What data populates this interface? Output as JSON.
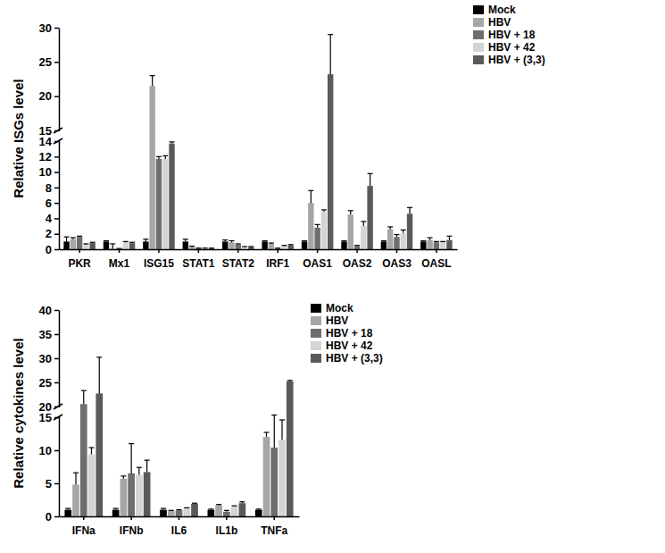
{
  "chart_data": [
    {
      "type": "bar",
      "y_label": "Relative ISGs level",
      "categories": [
        "PKR",
        "Mx1",
        "ISG15",
        "STAT1",
        "STAT2",
        "IRF1",
        "OAS1",
        "OAS2",
        "OAS3",
        "OASL"
      ],
      "series": [
        {
          "name": "Mock",
          "color": "#000000",
          "values": [
            1.0,
            1.0,
            1.0,
            1.0,
            1.0,
            1.0,
            1.0,
            1.0,
            1.0,
            1.0
          ],
          "errors": [
            0.6,
            0.1,
            0.3,
            0.3,
            0.2,
            0.1,
            0.1,
            0.1,
            0.1,
            0.1
          ]
        },
        {
          "name": "HBV",
          "color": "#a6a6a6",
          "values": [
            1.3,
            0.1,
            21.5,
            0.3,
            0.9,
            0.7,
            6.0,
            4.5,
            2.6,
            1.2
          ],
          "errors": [
            0.2,
            0.6,
            1.5,
            0.1,
            0.2,
            0.1,
            1.6,
            0.5,
            0.3,
            0.3
          ]
        },
        {
          "name": "HBV + 18",
          "color": "#6e6e6e",
          "values": [
            1.6,
            0.05,
            11.7,
            0.1,
            0.6,
            0.1,
            2.8,
            0.4,
            1.6,
            0.9
          ],
          "errors": [
            0.1,
            0.05,
            0.3,
            0.05,
            0.1,
            0.05,
            0.4,
            0.1,
            0.3,
            0.1
          ]
        },
        {
          "name": "HBV + 42",
          "color": "#d4d4d4",
          "values": [
            0.6,
            0.9,
            11.7,
            0.1,
            0.3,
            0.4,
            4.9,
            3.0,
            2.1,
            0.9
          ],
          "errors": [
            0.1,
            0.1,
            0.4,
            0.05,
            0.05,
            0.1,
            0.2,
            0.6,
            0.4,
            0.1
          ]
        },
        {
          "name": "HBV + (3,3)",
          "color": "#5a5a5a",
          "values": [
            0.8,
            0.8,
            13.7,
            0.1,
            0.3,
            0.5,
            23.2,
            8.2,
            4.6,
            1.2
          ],
          "errors": [
            0.1,
            0.1,
            0.2,
            0.05,
            0.05,
            0.1,
            5.8,
            1.6,
            0.8,
            0.5
          ]
        }
      ],
      "ylim": [
        0,
        30
      ],
      "ybreak": [
        14,
        15
      ],
      "yticks": [
        0,
        2,
        4,
        6,
        8,
        10,
        12,
        14,
        15,
        20,
        25,
        30
      ],
      "legend": "top-right"
    },
    {
      "type": "bar",
      "y_label": "Relative cytokines level",
      "categories": [
        "IFNa",
        "IFNb",
        "IL6",
        "IL1b",
        "TNFa"
      ],
      "series": [
        {
          "name": "Mock",
          "color": "#000000",
          "values": [
            1.0,
            1.0,
            1.0,
            1.0,
            1.0
          ],
          "errors": [
            0.2,
            0.2,
            0.2,
            0.1,
            0.1
          ]
        },
        {
          "name": "HBV",
          "color": "#a6a6a6",
          "values": [
            4.8,
            5.7,
            0.8,
            1.7,
            12.0
          ],
          "errors": [
            1.8,
            0.4,
            0.1,
            0.1,
            0.7
          ]
        },
        {
          "name": "HBV + 18",
          "color": "#6e6e6e",
          "values": [
            20.5,
            6.5,
            0.9,
            0.7,
            10.4
          ],
          "errors": [
            2.8,
            4.5,
            0.1,
            0.2,
            5.6
          ]
        },
        {
          "name": "HBV + 42",
          "color": "#d4d4d4",
          "values": [
            9.4,
            6.3,
            1.2,
            1.5,
            11.6
          ],
          "errors": [
            1.0,
            1.1,
            0.1,
            0.1,
            3.0
          ]
        },
        {
          "name": "HBV + (3,3)",
          "color": "#5a5a5a",
          "values": [
            22.7,
            6.7,
            1.9,
            2.0,
            25.2
          ],
          "errors": [
            7.5,
            1.8,
            0.1,
            0.2,
            0.2
          ]
        }
      ],
      "ylim": [
        0,
        40
      ],
      "ybreak": [
        15,
        20
      ],
      "yticks": [
        0,
        5,
        10,
        15,
        20,
        25,
        30,
        35,
        40
      ],
      "legend": "top-right"
    }
  ]
}
